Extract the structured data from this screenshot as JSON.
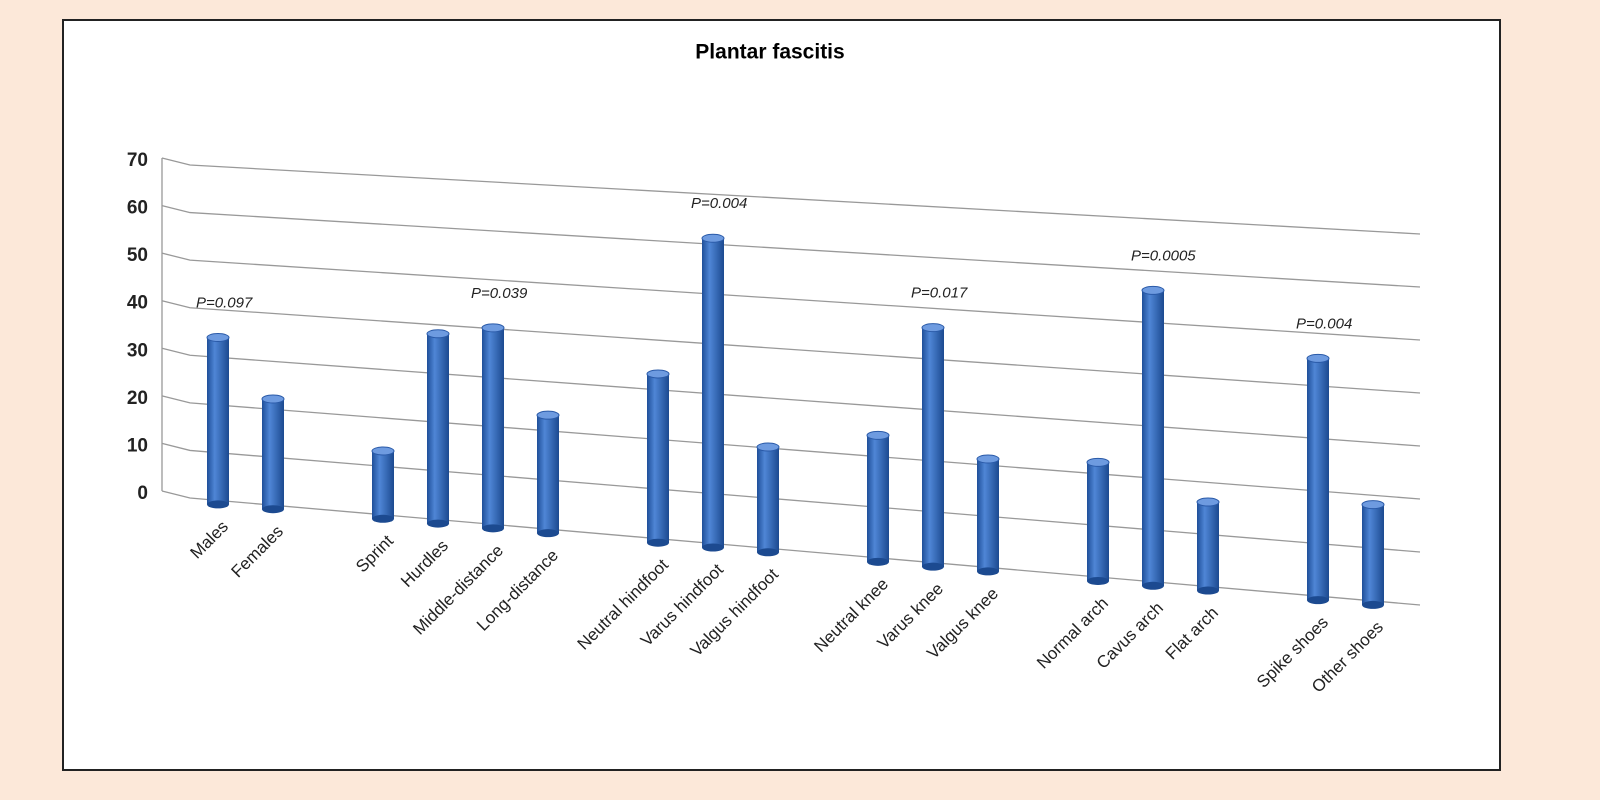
{
  "chart_data": {
    "type": "bar",
    "title": "Plantar fascitis",
    "categories": [
      "Males",
      "Females",
      null,
      "Sprint",
      "Hurdles",
      "Middle-distance",
      "Long-distance",
      null,
      "Neutral hindfoot",
      "Varus hindfoot",
      "Valgus hindfoot",
      null,
      "Neutral knee",
      "Varus knee",
      "Valgus knee",
      null,
      "Normal arch",
      "Cavus arch",
      "Flat arch",
      null,
      "Spike shoes",
      "Other shoes"
    ],
    "values": [
      35,
      23,
      null,
      14,
      39,
      41,
      24,
      null,
      34,
      62,
      21,
      null,
      25,
      47,
      22,
      null,
      23,
      57,
      17,
      null,
      46,
      19
    ],
    "color": "#3a6fc0",
    "annotations": [
      "P=0.097",
      "P=0.039",
      "P=0.004",
      "P=0.017",
      "P=0.0005",
      "P=0.004"
    ],
    "ylim": [
      0,
      70
    ],
    "yticks": [
      0,
      10,
      20,
      30,
      40,
      50,
      60,
      70
    ],
    "grid": true
  }
}
